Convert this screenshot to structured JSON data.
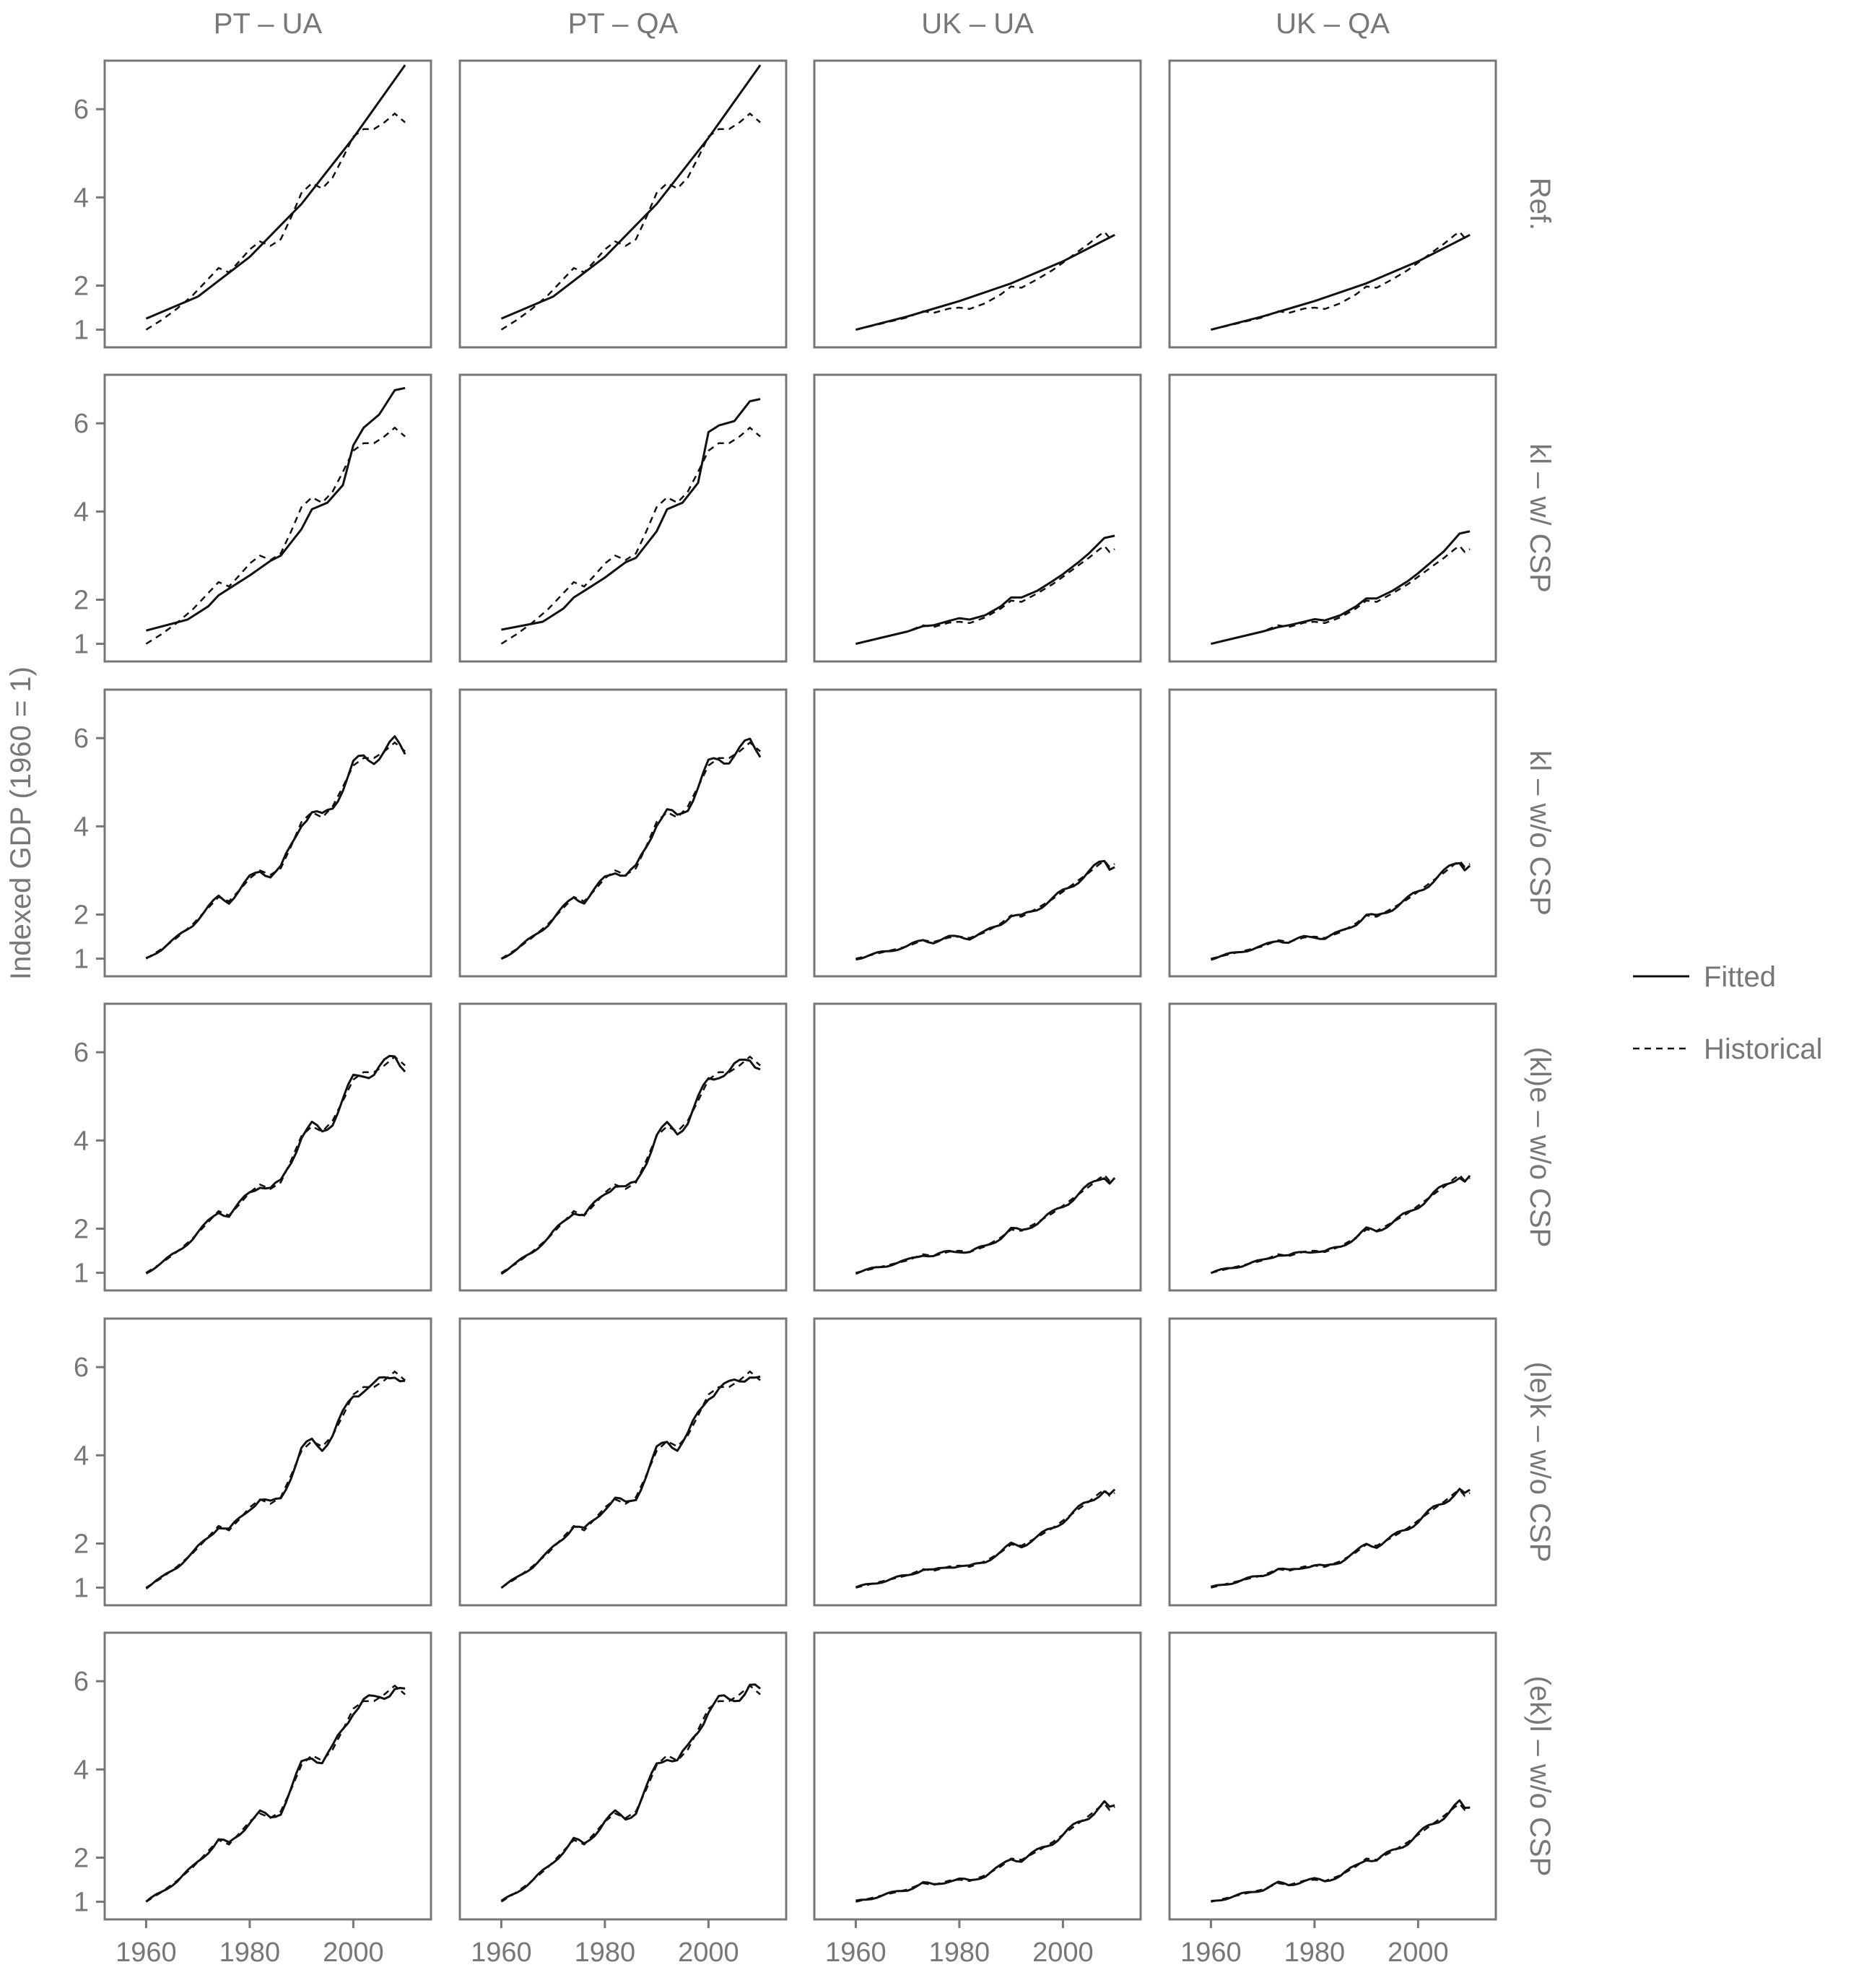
{
  "chart_data": {
    "type": "line",
    "columns": [
      "PT – UA",
      "PT – QA",
      "UK – UA",
      "UK – QA"
    ],
    "rows": [
      "Ref.",
      "kl – w/ CSP",
      "kl – w/o CSP",
      "(kl)e – w/o CSP",
      "(le)k – w/o CSP",
      "(ek)l – w/o CSP"
    ],
    "ylabel": "Indexed GDP (1960 = 1)",
    "xlabel": "",
    "x_ticks": [
      1960,
      1980,
      2000
    ],
    "y_ticks": [
      1,
      2,
      4,
      6
    ],
    "xlim": [
      1952,
      2015
    ],
    "ylim": [
      0.6,
      7.1
    ],
    "legend_position": "right",
    "legend": [
      "Fitted",
      "Historical"
    ],
    "historical": {
      "PT": {
        "x": [
          1960,
          1963,
          1966,
          1969,
          1972,
          1974,
          1976,
          1978,
          1980,
          1982,
          1984,
          1986,
          1988,
          1990,
          1992,
          1994,
          1996,
          1998,
          2000,
          2002,
          2004,
          2006,
          2008,
          2010
        ],
        "y": [
          1.0,
          1.22,
          1.48,
          1.78,
          2.15,
          2.4,
          2.3,
          2.55,
          2.82,
          3.0,
          2.9,
          3.05,
          3.55,
          4.1,
          4.32,
          4.2,
          4.45,
          4.9,
          5.38,
          5.55,
          5.55,
          5.7,
          5.9,
          5.7
        ]
      },
      "UK": {
        "x": [
          1960,
          1965,
          1970,
          1973,
          1975,
          1978,
          1980,
          1982,
          1985,
          1988,
          1990,
          1992,
          1995,
          1998,
          2000,
          2003,
          2005,
          2007,
          2008,
          2009,
          2010
        ],
        "y": [
          1.0,
          1.14,
          1.28,
          1.42,
          1.38,
          1.48,
          1.5,
          1.47,
          1.6,
          1.8,
          1.98,
          1.95,
          2.14,
          2.35,
          2.52,
          2.78,
          2.95,
          3.14,
          3.22,
          3.08,
          3.15
        ]
      }
    },
    "fitted_ref": {
      "PT": {
        "x": [
          1960,
          1970,
          1980,
          1990,
          2000,
          2010
        ],
        "y": [
          1.25,
          1.75,
          2.65,
          3.85,
          5.35,
          7.0
        ]
      },
      "UK": {
        "x": [
          1960,
          1970,
          1980,
          1990,
          2000,
          2010
        ],
        "y": [
          1.0,
          1.3,
          1.65,
          2.05,
          2.55,
          3.15
        ]
      }
    },
    "fitted_kl_csp": {
      "PT – UA": {
        "x": [
          1960,
          1968,
          1972,
          1974,
          1976,
          1980,
          1984,
          1986,
          1990,
          1992,
          1995,
          1998,
          2000,
          2002,
          2005,
          2008,
          2010
        ],
        "y": [
          1.3,
          1.55,
          1.85,
          2.1,
          2.25,
          2.55,
          2.88,
          3.0,
          3.6,
          4.05,
          4.2,
          4.6,
          5.5,
          5.9,
          6.2,
          6.75,
          6.8
        ]
      },
      "PT – QA": {
        "x": [
          1960,
          1968,
          1972,
          1974,
          1976,
          1980,
          1984,
          1986,
          1990,
          1992,
          1995,
          1998,
          2000,
          2002,
          2005,
          2008,
          2010
        ],
        "y": [
          1.32,
          1.5,
          1.8,
          2.05,
          2.2,
          2.5,
          2.85,
          2.95,
          3.55,
          4.05,
          4.2,
          4.65,
          5.8,
          5.95,
          6.05,
          6.5,
          6.55
        ]
      },
      "UK – UA": {
        "x": [
          1960,
          1965,
          1970,
          1973,
          1975,
          1978,
          1980,
          1982,
          1985,
          1988,
          1990,
          1992,
          1995,
          1998,
          2000,
          2003,
          2005,
          2008,
          2010
        ],
        "y": [
          1.0,
          1.14,
          1.28,
          1.4,
          1.42,
          1.52,
          1.58,
          1.55,
          1.65,
          1.85,
          2.05,
          2.05,
          2.2,
          2.42,
          2.58,
          2.85,
          3.05,
          3.4,
          3.45
        ]
      },
      "UK – QA": {
        "x": [
          1960,
          1965,
          1970,
          1973,
          1975,
          1978,
          1980,
          1982,
          1985,
          1988,
          1990,
          1992,
          1995,
          1998,
          2000,
          2003,
          2005,
          2008,
          2010
        ],
        "y": [
          1.0,
          1.14,
          1.28,
          1.38,
          1.42,
          1.5,
          1.56,
          1.53,
          1.65,
          1.85,
          2.03,
          2.03,
          2.2,
          2.42,
          2.6,
          2.9,
          3.1,
          3.5,
          3.55
        ]
      }
    },
    "fitted_offset_note": "",
    "notes": ""
  }
}
